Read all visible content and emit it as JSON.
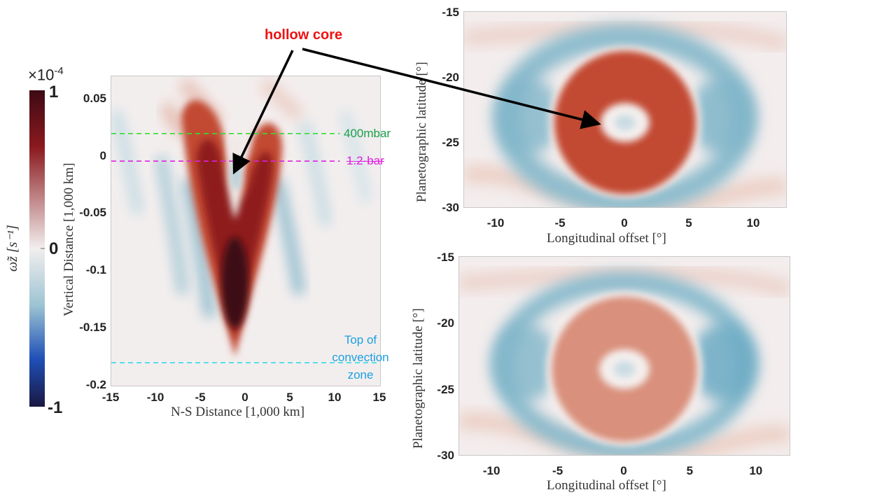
{
  "colors": {
    "cmap_max": "#3d0a14",
    "cmap_high": "#b5301f",
    "cmap_mid_pos": "#e8b6a4",
    "cmap_zero": "#f2eeee",
    "cmap_mid_neg": "#9cc4d2",
    "cmap_low": "#1f4fb7",
    "cmap_min": "#1a1740",
    "line_400mbar": "#33dd33",
    "label_400mbar": "#1a9e4a",
    "line_1_2bar": "#e020e0",
    "line_convection": "#22d8e8",
    "label_convection": "#1aa0e0",
    "hollow_core": "#ee1111",
    "arrow": "#000000"
  },
  "colorbar": {
    "exponent_label": "×10",
    "exponent_power": "-4",
    "ticks": [
      "1",
      "0",
      "-1"
    ],
    "label": "ω̃z [s⁻¹]",
    "range": [
      -1,
      1
    ]
  },
  "annotation": {
    "hollow_core": "hollow core"
  },
  "chart_data": [
    {
      "type": "heatmap",
      "title": "",
      "xlabel": "N-S Distance [1,000 km]",
      "ylabel": "Vertical Distance [1,000 km]",
      "xlim": [
        -15,
        15
      ],
      "ylim": [
        -0.2,
        0.07
      ],
      "xticks": [
        "-15",
        "-10",
        "-5",
        "0",
        "5",
        "10",
        "15"
      ],
      "xtick_values": [
        -15,
        -10,
        -5,
        0,
        5,
        10,
        15
      ],
      "yticks": [
        "0.05",
        "0",
        "-0.05",
        "-0.1",
        "-0.15",
        "-0.2"
      ],
      "ytick_values": [
        0.05,
        0,
        -0.05,
        -0.1,
        -0.15,
        -0.2
      ],
      "colorbar_range": [
        -0.0001,
        0.0001
      ],
      "features": [
        {
          "name": "V-shaped positive vorticity plume",
          "center_x": -1,
          "top_y": 0.03,
          "bottom_y": -0.17,
          "peak_value": 1.0,
          "peak_y": -0.11
        },
        {
          "name": "hollow core",
          "center_x": -1,
          "y_range": [
            0.0,
            -0.05
          ],
          "value": 0.0
        },
        {
          "name": "negative flanks",
          "x": [
            -6,
            4
          ],
          "value": -0.35
        }
      ],
      "reference_lines": [
        {
          "label": "400mbar",
          "y": 0.02,
          "style": "dashed",
          "color": "#33dd33"
        },
        {
          "label": "1.2-bar",
          "y": -0.004,
          "style": "dashed",
          "color": "#e020e0"
        },
        {
          "label": "Top of convection zone",
          "y": -0.18,
          "style": "dashed",
          "color": "#22d8e8"
        }
      ]
    },
    {
      "type": "heatmap",
      "title": "",
      "xlabel": "Longitudinal offset [°]",
      "ylabel": "Planetographic latitude [°]",
      "xlim": [
        -12.5,
        12.5
      ],
      "ylim": [
        -30,
        -15
      ],
      "xticks": [
        "-10",
        "-5",
        "0",
        "5",
        "10"
      ],
      "xtick_values": [
        -10,
        -5,
        0,
        5,
        10
      ],
      "yticks": [
        "-15",
        "-20",
        "-25",
        "-30"
      ],
      "ytick_values": [
        -15,
        -20,
        -25,
        -30
      ],
      "features": [
        {
          "name": "positive vorticity ring",
          "center": [
            0,
            -23.5
          ],
          "radius_deg": 5.5,
          "value": 0.6
        },
        {
          "name": "hollow core",
          "center": [
            0,
            -23.5
          ],
          "value": -0.1
        },
        {
          "name": "negative collar",
          "value": -0.35
        }
      ]
    },
    {
      "type": "heatmap",
      "title": "",
      "xlabel": "Longitudinal offset [°]",
      "ylabel": "Planetographic latitude [°]",
      "xlim": [
        -12.5,
        12.5
      ],
      "ylim": [
        -30,
        -15
      ],
      "xticks": [
        "-10",
        "-5",
        "0",
        "5",
        "10"
      ],
      "xtick_values": [
        -10,
        -5,
        0,
        5,
        10
      ],
      "yticks": [
        "-15",
        "-20",
        "-25",
        "-30"
      ],
      "ytick_values": [
        -15,
        -20,
        -25,
        -30
      ],
      "features": [
        {
          "name": "positive vorticity ring",
          "center": [
            0,
            -23.5
          ],
          "radius_deg": 5.5,
          "value": 0.4
        },
        {
          "name": "hollow core",
          "center": [
            0,
            -23.5
          ],
          "value": -0.05
        },
        {
          "name": "negative collar",
          "value": -0.4
        }
      ]
    }
  ]
}
